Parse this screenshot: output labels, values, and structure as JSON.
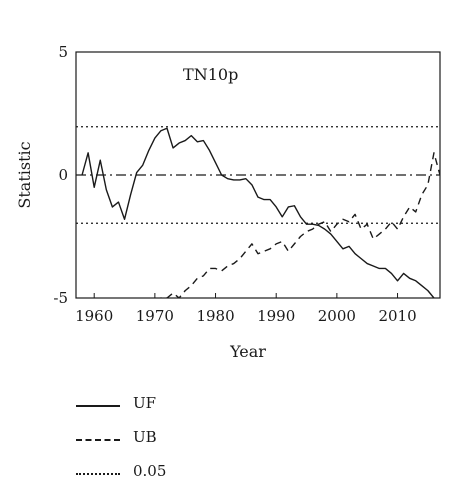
{
  "chart_data": {
    "type": "line",
    "title": "TN10p",
    "xlabel": "Year",
    "ylabel": "Statistic",
    "xlim": [
      1957,
      2017
    ],
    "ylim": [
      -5,
      5
    ],
    "xticks": [
      1960,
      1970,
      1980,
      1990,
      2000,
      2010
    ],
    "yticks": [
      -5,
      0,
      5
    ],
    "ytick_labels": [
      "-5",
      "0",
      "5"
    ],
    "grid": false,
    "legend": "bottom-left, below plot",
    "series": [
      {
        "name": "UF",
        "style": "solid",
        "color": "#1a1a1a",
        "x": [
          1958,
          1959,
          1960,
          1961,
          1962,
          1963,
          1964,
          1965,
          1966,
          1967,
          1968,
          1969,
          1970,
          1971,
          1972,
          1973,
          1974,
          1975,
          1976,
          1977,
          1978,
          1979,
          1980,
          1981,
          1982,
          1983,
          1984,
          1985,
          1986,
          1987,
          1988,
          1989,
          1990,
          1991,
          1992,
          1993,
          1994,
          1995,
          1996,
          1997,
          1998,
          1999,
          2000,
          2001,
          2002,
          2003,
          2004,
          2005,
          2006,
          2007,
          2008,
          2009,
          2010,
          2011,
          2012,
          2013,
          2014,
          2015,
          2016
        ],
        "y": [
          0.0,
          0.9,
          -0.5,
          0.6,
          -0.6,
          -1.3,
          -1.1,
          -1.8,
          -0.8,
          0.1,
          0.4,
          1.0,
          1.5,
          1.8,
          1.9,
          1.1,
          1.3,
          1.4,
          1.6,
          1.35,
          1.4,
          1.0,
          0.5,
          0.0,
          -0.15,
          -0.2,
          -0.2,
          -0.15,
          -0.4,
          -0.9,
          -1.0,
          -1.0,
          -1.3,
          -1.7,
          -1.3,
          -1.25,
          -1.7,
          -2.0,
          -2.0,
          -2.05,
          -2.2,
          -2.4,
          -2.7,
          -3.0,
          -2.9,
          -3.2,
          -3.4,
          -3.6,
          -3.7,
          -3.8,
          -3.8,
          -4.0,
          -4.3,
          -4.0,
          -4.2,
          -4.3,
          -4.5,
          -4.7,
          -5.0
        ]
      },
      {
        "name": "UB",
        "style": "dashed",
        "color": "#1a1a1a",
        "x": [
          1970,
          1971,
          1972,
          1973,
          1974,
          1975,
          1976,
          1977,
          1978,
          1979,
          1980,
          1981,
          1982,
          1983,
          1984,
          1985,
          1986,
          1987,
          1988,
          1989,
          1990,
          1991,
          1992,
          1993,
          1994,
          1995,
          1996,
          1997,
          1998,
          1999,
          2000,
          2001,
          2002,
          2003,
          2004,
          2005,
          2006,
          2007,
          2008,
          2009,
          2010,
          2011,
          2012,
          2013,
          2014,
          2015,
          2016,
          2017
        ],
        "y": [
          -5.1,
          -5.0,
          -5.0,
          -4.8,
          -5.0,
          -4.7,
          -4.5,
          -4.2,
          -4.1,
          -3.8,
          -3.8,
          -3.9,
          -3.7,
          -3.6,
          -3.4,
          -3.1,
          -2.8,
          -3.2,
          -3.1,
          -3.0,
          -2.8,
          -2.7,
          -3.1,
          -2.8,
          -2.5,
          -2.3,
          -2.2,
          -2.0,
          -1.9,
          -2.3,
          -2.0,
          -1.8,
          -1.9,
          -1.6,
          -2.2,
          -2.0,
          -2.6,
          -2.4,
          -2.2,
          -1.9,
          -2.2,
          -1.7,
          -1.3,
          -1.5,
          -0.8,
          -0.4,
          0.9,
          0.0
        ]
      }
    ],
    "reference_lines": [
      {
        "name": "0.05",
        "style": "dotted",
        "y": [
          1.96,
          -1.96
        ]
      },
      {
        "style": "dashdot",
        "y": [
          0
        ]
      }
    ]
  },
  "legend": {
    "items": [
      {
        "label": "UF",
        "style": "solid"
      },
      {
        "label": "UB",
        "style": "dashed"
      },
      {
        "label": "0.05",
        "style": "dotted"
      }
    ]
  }
}
